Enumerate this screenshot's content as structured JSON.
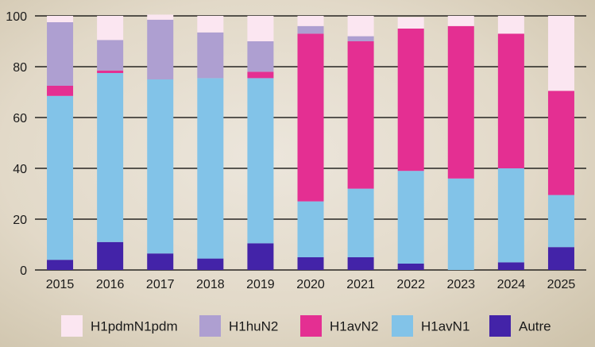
{
  "chart_data": {
    "type": "bar",
    "stacked": true,
    "categories": [
      "2015",
      "2016",
      "2017",
      "2018",
      "2019",
      "2020",
      "2021",
      "2022",
      "2023",
      "2024",
      "2025"
    ],
    "series": [
      {
        "name": "Autre",
        "color": "#4323a8",
        "values": [
          4,
          11,
          6.5,
          4.5,
          10.5,
          5,
          5,
          2.5,
          0,
          3,
          9
        ]
      },
      {
        "name": "H1avN1",
        "color": "#82c3e8",
        "values": [
          64.5,
          66.5,
          68.5,
          71,
          65,
          22,
          27,
          36.5,
          36,
          37,
          20.5
        ]
      },
      {
        "name": "H1avN2",
        "color": "#e42f92",
        "values": [
          4,
          1,
          0,
          0,
          2.5,
          66,
          58,
          56,
          60,
          53,
          41
        ]
      },
      {
        "name": "H1huN2",
        "color": "#ae9fd1",
        "values": [
          25,
          12,
          23.5,
          18,
          12,
          3,
          2,
          0,
          0,
          0,
          0
        ]
      },
      {
        "name": "H1pdmN1pdm",
        "color": "#fbe6f1",
        "values": [
          2.5,
          9.5,
          2,
          6.5,
          10,
          4,
          8,
          4.5,
          4,
          7,
          29.5
        ]
      }
    ],
    "legend_order": [
      "H1pdmN1pdm",
      "H1huN2",
      "H1avN2",
      "H1avN1",
      "Autre"
    ],
    "ylim": [
      0,
      100
    ],
    "yticks": [
      0,
      20,
      40,
      60,
      80,
      100
    ],
    "title": "",
    "xlabel": "",
    "ylabel": "",
    "grid": true,
    "legend_position": "bottom"
  }
}
